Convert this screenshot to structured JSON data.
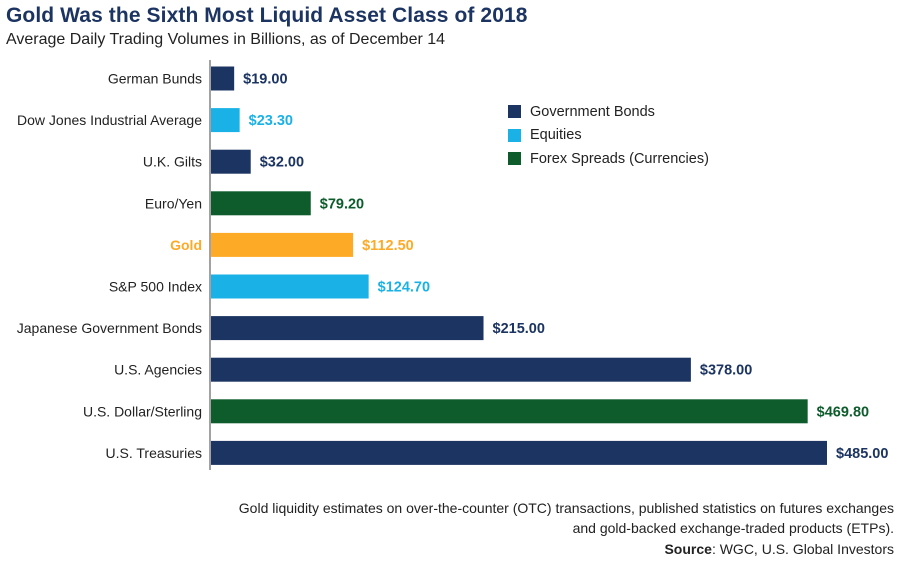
{
  "header": {
    "title": "Gold Was the Sixth Most Liquid Asset Class of 2018",
    "subtitle": "Average Daily Trading Volumes in Billions, as of December 14"
  },
  "colors": {
    "government_bonds": "#1c3461",
    "equities": "#1ab2e6",
    "forex": "#0e5c2c",
    "gold": "#fdab27"
  },
  "legend": [
    {
      "label": "Government Bonds",
      "color_key": "government_bonds"
    },
    {
      "label": "Equities",
      "color_key": "equities"
    },
    {
      "label": "Forex Spreads (Currencies)",
      "color_key": "forex"
    }
  ],
  "chart_data": {
    "type": "bar",
    "orientation": "horizontal",
    "title": "Gold Was the Sixth Most Liquid Asset Class of 2018",
    "subtitle": "Average Daily Trading Volumes in Billions, as of December 14",
    "categories": [
      "German Bunds",
      "Dow Jones Industrial Average",
      "U.K. Gilts",
      "Euro/Yen",
      "Gold",
      "S&P 500 Index",
      "Japanese Government Bonds",
      "U.S. Agencies",
      "U.S. Dollar/Sterling",
      "U.S. Treasuries"
    ],
    "values": [
      19.0,
      23.3,
      32.0,
      79.2,
      112.5,
      124.7,
      215.0,
      378.0,
      469.8,
      485.0
    ],
    "value_labels": [
      "$19.00",
      "$23.30",
      "$32.00",
      "$79.20",
      "$112.50",
      "$124.70",
      "$215.00",
      "$378.00",
      "$469.80",
      "$485.00"
    ],
    "groups": [
      "government_bonds",
      "equities",
      "government_bonds",
      "forex",
      "gold",
      "equities",
      "government_bonds",
      "government_bonds",
      "forex",
      "government_bonds"
    ],
    "xlim": [
      0,
      485
    ],
    "grid": false,
    "legend_position": "top-right"
  },
  "footer": {
    "note_line1": "Gold liquidity estimates on over-the-counter (OTC) transactions, published statistics on futures exchanges",
    "note_line2": "and gold-backed exchange-traded products (ETPs).",
    "source_label": "Source",
    "source_text": ": WGC, U.S. Global Investors"
  }
}
